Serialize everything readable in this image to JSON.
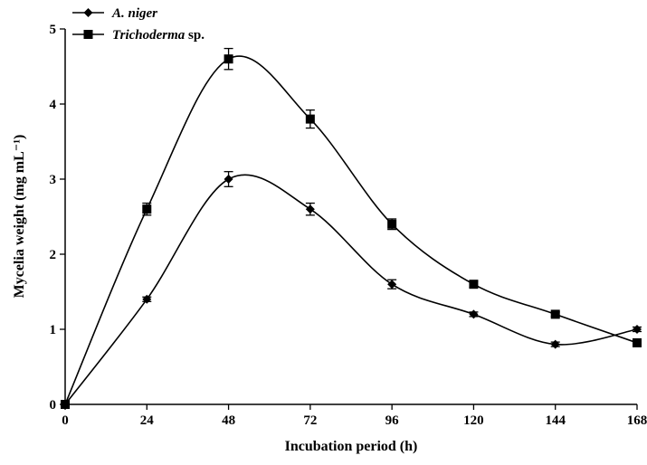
{
  "chart_data": {
    "type": "line",
    "xlabel": "Incubation period (h)",
    "ylabel": "Mycelia weight (mg mL⁻¹)",
    "x": [
      0,
      24,
      48,
      72,
      96,
      120,
      144,
      168
    ],
    "xlim": [
      0,
      168
    ],
    "ylim": [
      0,
      5
    ],
    "xticks": [
      0,
      24,
      48,
      72,
      96,
      120,
      144,
      168
    ],
    "yticks": [
      0,
      1,
      2,
      3,
      4,
      5
    ],
    "grid": false,
    "legend_position": "top-left",
    "series": [
      {
        "name": "A. niger",
        "name_italic": "A. niger",
        "name_suffix": "",
        "marker": "diamond",
        "values": [
          0,
          1.4,
          3.0,
          2.6,
          1.6,
          1.2,
          0.8,
          1.0
        ],
        "errors": [
          0,
          0.03,
          0.1,
          0.08,
          0.06,
          0.03,
          0.03,
          0.03
        ]
      },
      {
        "name": "Trichoderma sp.",
        "name_italic": "Trichoderma",
        "name_suffix": " sp.",
        "marker": "square",
        "values": [
          0,
          2.6,
          4.6,
          3.8,
          2.4,
          1.6,
          1.2,
          0.82
        ],
        "errors": [
          0,
          0.08,
          0.14,
          0.12,
          0.07,
          0.04,
          0.03,
          0.03
        ]
      }
    ]
  }
}
